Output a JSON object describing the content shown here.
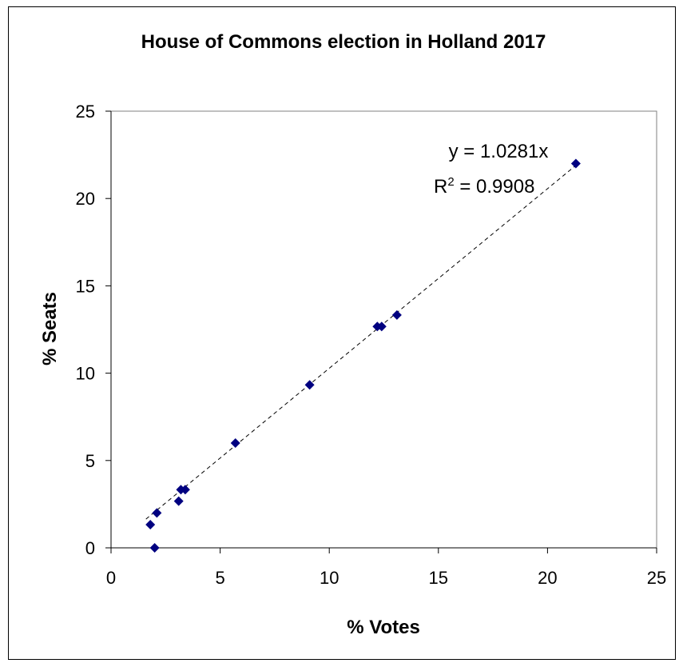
{
  "chart_data": {
    "type": "scatter",
    "title": "House of Commons election in Holland 2017",
    "xlabel": "% Votes",
    "ylabel": "% Seats",
    "xlim": [
      0,
      25
    ],
    "ylim": [
      0,
      25
    ],
    "xticks": [
      0,
      5,
      10,
      15,
      20,
      25
    ],
    "yticks": [
      0,
      5,
      10,
      15,
      20,
      25
    ],
    "grid": false,
    "legend": "none",
    "marker_color": "#000080",
    "series": [
      {
        "points": [
          {
            "x": 1.8,
            "y": 1.33
          },
          {
            "x": 2.0,
            "y": 0.0
          },
          {
            "x": 2.1,
            "y": 2.0
          },
          {
            "x": 3.1,
            "y": 2.67
          },
          {
            "x": 3.2,
            "y": 3.33
          },
          {
            "x": 3.4,
            "y": 3.33
          },
          {
            "x": 5.7,
            "y": 6.0
          },
          {
            "x": 9.1,
            "y": 9.33
          },
          {
            "x": 12.2,
            "y": 12.67
          },
          {
            "x": 12.4,
            "y": 12.67
          },
          {
            "x": 13.1,
            "y": 13.33
          },
          {
            "x": 21.3,
            "y": 22.0
          }
        ]
      }
    ],
    "trendline": {
      "slope": 1.0281,
      "intercept": 0,
      "x_range": [
        1.6,
        21.4
      ],
      "style": "dashed",
      "equation": "y = 1.0281x",
      "r2_prefix": "R",
      "r2_sup": "2",
      "r2_value": " = 0.9908"
    }
  }
}
